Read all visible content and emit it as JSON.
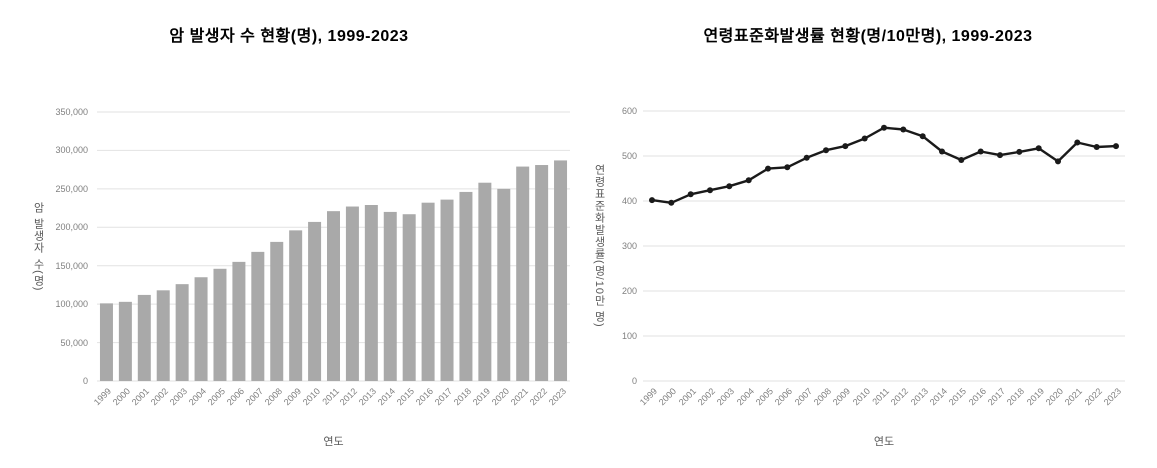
{
  "colors": {
    "bar": "#a9a9a9",
    "line": "#1a1a1a",
    "grid": "#e2e2e2",
    "tick_text": "#7f7f7f",
    "axis_title_text": "#595959",
    "title_text": "#000000",
    "background": "#ffffff"
  },
  "chart_data": [
    {
      "type": "bar",
      "title": "암 발생자 수 현황(명), 1999-2023",
      "xlabel": "연도",
      "ylabel": "암 발생자 수(명)",
      "categories": [
        "1999",
        "2000",
        "2001",
        "2002",
        "2003",
        "2004",
        "2005",
        "2006",
        "2007",
        "2008",
        "2009",
        "2010",
        "2011",
        "2012",
        "2013",
        "2014",
        "2015",
        "2016",
        "2017",
        "2018",
        "2019",
        "2020",
        "2021",
        "2022",
        "2023"
      ],
      "values": [
        101000,
        103000,
        112000,
        118000,
        126000,
        135000,
        146000,
        155000,
        168000,
        181000,
        196000,
        207000,
        221000,
        227000,
        229000,
        220000,
        217000,
        232000,
        236000,
        246000,
        258000,
        250000,
        279000,
        281000,
        287000
      ],
      "ylim": [
        0,
        350000
      ],
      "yticks": [
        0,
        50000,
        100000,
        150000,
        200000,
        250000,
        300000,
        350000
      ],
      "grid": "horizontal",
      "legend": "none"
    },
    {
      "type": "line",
      "title": "연령표준화발생률 현황(명/10만명), 1999-2023",
      "xlabel": "연도",
      "ylabel": "연령표준화발생률(명/10만 명)",
      "categories": [
        "1999",
        "2000",
        "2001",
        "2002",
        "2003",
        "2004",
        "2005",
        "2006",
        "2007",
        "2008",
        "2009",
        "2010",
        "2011",
        "2012",
        "2013",
        "2014",
        "2015",
        "2016",
        "2017",
        "2018",
        "2019",
        "2020",
        "2021",
        "2022",
        "2023"
      ],
      "values": [
        402,
        396,
        415,
        424,
        433,
        446,
        472,
        475,
        496,
        513,
        522,
        539,
        563,
        559,
        544,
        510,
        491,
        510,
        502,
        509,
        517,
        488,
        530,
        520,
        522
      ],
      "ylim": [
        0,
        600
      ],
      "yticks": [
        0,
        100,
        200,
        300,
        400,
        500,
        600
      ],
      "grid": "horizontal",
      "legend": "none",
      "marker": "circle"
    }
  ]
}
